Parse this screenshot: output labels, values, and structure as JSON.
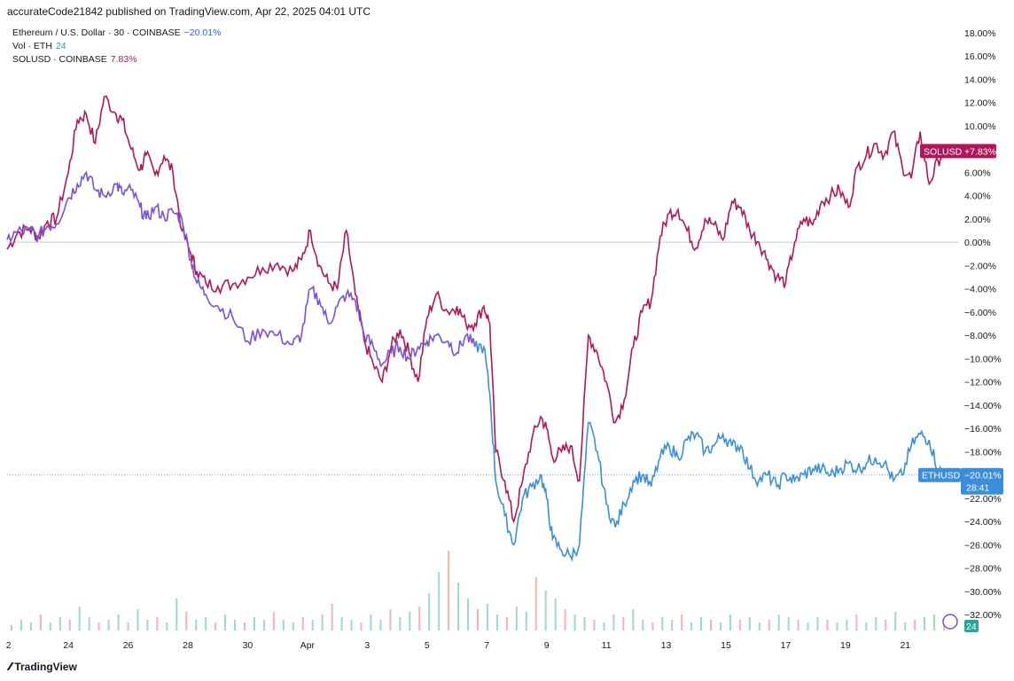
{
  "header": {
    "text": "accurateCode21842 published on TradingView.com, Apr 22, 2025 04:01 UTC"
  },
  "legend": {
    "eth_label": "Ethereum / U.S. Dollar · 30 · COINBASE",
    "eth_value": "−20.01%",
    "vol_label": "Vol · ETH",
    "vol_value": "24",
    "sol_label": "SOLUSD · COINBASE",
    "sol_value": "7.83%"
  },
  "badges": {
    "sol_name": "SOLUSD",
    "sol_value": "+7.83%",
    "eth_name": "ETHUSD",
    "eth_value": "−20.01%",
    "eth_countdown": "28:41",
    "vol_value": "24"
  },
  "footer": {
    "brand": "TradingView"
  },
  "colors": {
    "eth": "#3b8fd8",
    "eth_early": "#7b4fd9",
    "sol": "#b0175a",
    "vol_up": "#26a69a",
    "vol_down": "#ef5350"
  },
  "chart_data": {
    "type": "line",
    "y_unit": "%",
    "ylim": [
      -33,
      19
    ],
    "y_ticks": [
      "18.00%",
      "16.00%",
      "14.00%",
      "12.00%",
      "10.00%",
      "8.00%",
      "6.00%",
      "4.00%",
      "2.00%",
      "0.00%",
      "−2.00%",
      "−4.00%",
      "−6.00%",
      "−8.00%",
      "−10.00%",
      "−12.00%",
      "−14.00%",
      "−16.00%",
      "−18.00%",
      "−20.00%",
      "−22.00%",
      "−24.00%",
      "−26.00%",
      "−28.00%",
      "−30.00%",
      "−32.00%"
    ],
    "x_ticks": [
      "2",
      "24",
      "26",
      "28",
      "30",
      "Apr",
      "3",
      "5",
      "7",
      "9",
      "11",
      "13",
      "15",
      "17",
      "19",
      "21"
    ],
    "x_tick_days": [
      22,
      24,
      26,
      28,
      30,
      32,
      34,
      36,
      38,
      40,
      42,
      44,
      46,
      48,
      50,
      52
    ],
    "xlim_days": [
      21.95,
      53.8
    ],
    "series": [
      {
        "name": "SOLUSD",
        "x_days": [
          21.95,
          22.3,
          22.7,
          23.0,
          23.3,
          23.6,
          24.0,
          24.3,
          24.6,
          24.9,
          25.2,
          25.6,
          25.8,
          26.1,
          26.4,
          26.6,
          26.9,
          27.2,
          27.5,
          27.8,
          28.1,
          28.3,
          28.6,
          29.0,
          29.5,
          30.0,
          30.5,
          31.0,
          31.5,
          31.8,
          32.1,
          32.4,
          32.7,
          33.0,
          33.3,
          33.6,
          33.9,
          34.2,
          34.5,
          34.8,
          35.1,
          35.4,
          35.7,
          36.0,
          36.3,
          36.7,
          37.0,
          37.3,
          37.6,
          37.9,
          38.1,
          38.3,
          38.6,
          38.9,
          39.2,
          39.5,
          39.8,
          40.0,
          40.2,
          40.5,
          40.8,
          41.1,
          41.4,
          41.7,
          42.0,
          42.3,
          42.6,
          42.9,
          43.2,
          43.5,
          43.8,
          44.1,
          44.4,
          44.7,
          45.0,
          45.3,
          45.6,
          45.9,
          46.2,
          46.5,
          46.8,
          47.1,
          47.4,
          47.7,
          48.0,
          48.3,
          48.6,
          48.9,
          49.2,
          49.5,
          49.8,
          50.1,
          50.4,
          50.7,
          51.0,
          51.3,
          51.6,
          51.9,
          52.2,
          52.5,
          52.8,
          53.1,
          53.3
        ],
        "values": [
          -0.6,
          0.8,
          1.2,
          0.4,
          1.8,
          2.0,
          6.0,
          10.5,
          11.0,
          8.5,
          12.5,
          11.0,
          10.5,
          8.0,
          6.2,
          7.5,
          5.8,
          7.4,
          6.0,
          1.0,
          -1.0,
          -2.5,
          -3.5,
          -3.8,
          -3.6,
          -3.0,
          -2.2,
          -1.8,
          -2.5,
          -1.5,
          1.0,
          -2.0,
          -3.5,
          -4.0,
          1.0,
          -4.5,
          -8.5,
          -10.5,
          -12.0,
          -9.0,
          -7.5,
          -9.5,
          -12.0,
          -6.5,
          -4.5,
          -6.0,
          -5.5,
          -7.0,
          -7.0,
          -5.5,
          -7.0,
          -18.0,
          -20.5,
          -24.0,
          -20.5,
          -17.0,
          -15.0,
          -16.0,
          -18.5,
          -18.0,
          -17.5,
          -20.5,
          -8.0,
          -9.5,
          -12.0,
          -15.5,
          -13.5,
          -9.0,
          -6.0,
          -5.0,
          0.5,
          2.5,
          2.8,
          1.0,
          -0.5,
          2.0,
          1.5,
          0.2,
          3.5,
          3.0,
          1.0,
          0.0,
          -1.5,
          -3.0,
          -3.5,
          0.0,
          2.0,
          1.5,
          3.5,
          4.0,
          4.5,
          3.0,
          6.5,
          7.5,
          8.5,
          7.5,
          9.5,
          6.5,
          5.5,
          9.5,
          5.0,
          7.0,
          7.83
        ]
      },
      {
        "name": "ETHUSD",
        "x_days": [
          21.95,
          22.3,
          22.7,
          23.0,
          23.3,
          23.6,
          24.0,
          24.3,
          24.6,
          24.9,
          25.2,
          25.6,
          25.8,
          26.1,
          26.4,
          26.6,
          26.9,
          27.2,
          27.5,
          27.8,
          28.1,
          28.3,
          28.6,
          29.0,
          29.5,
          30.0,
          30.5,
          31.0,
          31.5,
          31.8,
          32.1,
          32.4,
          32.7,
          33.0,
          33.3,
          33.6,
          33.9,
          34.2,
          34.5,
          34.8,
          35.1,
          35.4,
          35.7,
          36.0,
          36.3,
          36.7,
          37.0,
          37.3,
          37.6,
          37.9,
          38.1,
          38.3,
          38.6,
          38.9,
          39.2,
          39.5,
          39.8,
          40.0,
          40.2,
          40.5,
          40.8,
          41.1,
          41.4,
          41.7,
          42.0,
          42.3,
          42.6,
          42.9,
          43.2,
          43.5,
          43.8,
          44.1,
          44.4,
          44.7,
          45.0,
          45.3,
          45.6,
          45.9,
          46.2,
          46.5,
          46.8,
          47.1,
          47.4,
          47.7,
          48.0,
          48.3,
          48.6,
          48.9,
          49.2,
          49.5,
          49.8,
          50.1,
          50.4,
          50.7,
          51.0,
          51.3,
          51.6,
          51.9,
          52.2,
          52.5,
          52.8,
          53.1,
          53.3
        ],
        "values": [
          0.2,
          0.9,
          1.0,
          0.5,
          1.4,
          1.6,
          3.8,
          5.0,
          6.0,
          4.5,
          4.0,
          5.0,
          4.2,
          4.5,
          3.0,
          2.0,
          3.0,
          2.2,
          2.6,
          2.0,
          -1.5,
          -3.5,
          -4.5,
          -5.5,
          -6.5,
          -8.5,
          -7.5,
          -8.0,
          -8.8,
          -8.0,
          -4.0,
          -5.0,
          -7.0,
          -5.5,
          -4.5,
          -5.0,
          -8.0,
          -9.0,
          -10.5,
          -9.5,
          -9.0,
          -10.0,
          -9.0,
          -8.5,
          -8.0,
          -8.5,
          -9.5,
          -8.0,
          -9.0,
          -9.0,
          -13.0,
          -20.5,
          -23.5,
          -26.0,
          -22.0,
          -21.0,
          -20.0,
          -22.0,
          -25.5,
          -26.5,
          -27.0,
          -26.0,
          -15.5,
          -18.0,
          -22.5,
          -24.5,
          -22.5,
          -20.5,
          -20.0,
          -21.0,
          -18.5,
          -17.5,
          -18.5,
          -17.0,
          -16.5,
          -18.0,
          -17.5,
          -16.5,
          -17.5,
          -17.5,
          -19.5,
          -20.5,
          -20.0,
          -21.0,
          -20.0,
          -20.5,
          -20.0,
          -19.5,
          -19.5,
          -20.0,
          -19.5,
          -19.0,
          -19.5,
          -19.0,
          -18.5,
          -19.0,
          -20.5,
          -20.0,
          -17.5,
          -16.5,
          -17.0,
          -19.5,
          -20.01
        ]
      }
    ],
    "volume": {
      "values": [
        2,
        4,
        3,
        6,
        3,
        5,
        4,
        9,
        5,
        3,
        4,
        6,
        3,
        8,
        4,
        5,
        3,
        12,
        7,
        4,
        5,
        3,
        6,
        4,
        3,
        5,
        4,
        7,
        4,
        3,
        5,
        4,
        6,
        10,
        5,
        4,
        3,
        6,
        4,
        8,
        5,
        7,
        9,
        14,
        22,
        30,
        18,
        12,
        8,
        10,
        6,
        5,
        9,
        7,
        20,
        15,
        12,
        8,
        6,
        5,
        4,
        3,
        6,
        5,
        8,
        4,
        3,
        5,
        4,
        6,
        3,
        5,
        4,
        3,
        6,
        4,
        5,
        3,
        4,
        6,
        5,
        4,
        3,
        5,
        4,
        3,
        4,
        6,
        3,
        5,
        4,
        7,
        3,
        4,
        5,
        6,
        4
      ]
    }
  }
}
